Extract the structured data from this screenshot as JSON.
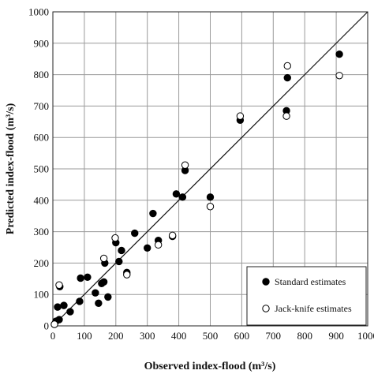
{
  "chart_data": {
    "type": "scatter",
    "title": "",
    "xlabel": "Observed index-flood (m³/s)",
    "ylabel": "Predicted index-flood (m³/s)",
    "xlim": [
      0,
      1000
    ],
    "ylim": [
      0,
      1000
    ],
    "x_ticks": [
      "0",
      "100",
      "200",
      "300",
      "400",
      "500",
      "600",
      "700",
      "800",
      "900",
      "1000"
    ],
    "y_ticks": [
      "0",
      "100",
      "200",
      "300",
      "400",
      "500",
      "600",
      "700",
      "800",
      "900",
      "1000"
    ],
    "grid": true,
    "legend_position": "bottom-right",
    "reference_line": {
      "x": [
        0,
        1000
      ],
      "y": [
        0,
        1000
      ]
    },
    "series": [
      {
        "name": "Standard estimates",
        "marker": "filled-circle",
        "points": [
          [
            5,
            5
          ],
          [
            10,
            15
          ],
          [
            15,
            60
          ],
          [
            20,
            20
          ],
          [
            22,
            125
          ],
          [
            35,
            65
          ],
          [
            55,
            45
          ],
          [
            85,
            78
          ],
          [
            88,
            152
          ],
          [
            110,
            155
          ],
          [
            135,
            105
          ],
          [
            145,
            72
          ],
          [
            155,
            135
          ],
          [
            162,
            140
          ],
          [
            165,
            200
          ],
          [
            175,
            92
          ],
          [
            200,
            265
          ],
          [
            210,
            205
          ],
          [
            218,
            240
          ],
          [
            235,
            170
          ],
          [
            260,
            295
          ],
          [
            300,
            248
          ],
          [
            318,
            358
          ],
          [
            335,
            272
          ],
          [
            380,
            285
          ],
          [
            392,
            420
          ],
          [
            412,
            410
          ],
          [
            420,
            495
          ],
          [
            500,
            410
          ],
          [
            595,
            655
          ],
          [
            742,
            685
          ],
          [
            745,
            790
          ],
          [
            910,
            865
          ]
        ]
      },
      {
        "name": "Jack-knife estimates",
        "marker": "open-circle",
        "points": [
          [
            5,
            5
          ],
          [
            20,
            130
          ],
          [
            162,
            215
          ],
          [
            198,
            280
          ],
          [
            235,
            163
          ],
          [
            335,
            258
          ],
          [
            380,
            288
          ],
          [
            420,
            512
          ],
          [
            500,
            380
          ],
          [
            595,
            668
          ],
          [
            742,
            668
          ],
          [
            745,
            828
          ],
          [
            910,
            797
          ]
        ]
      }
    ]
  }
}
